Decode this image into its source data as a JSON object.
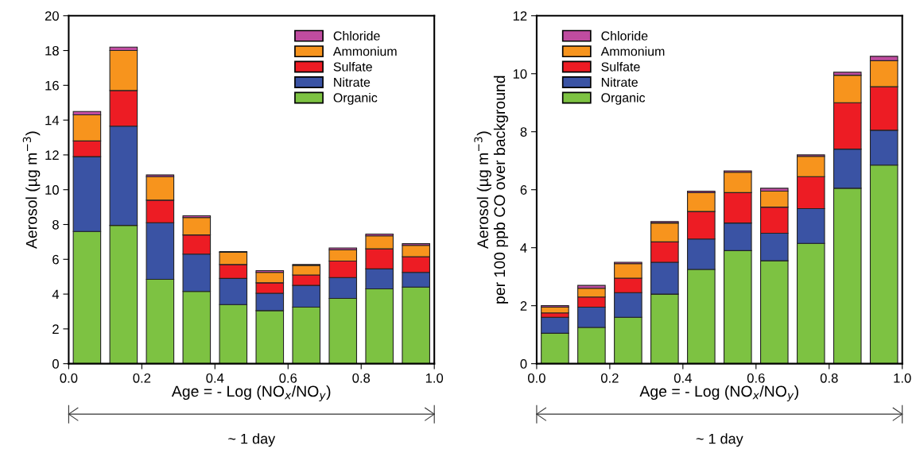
{
  "chart_data": [
    {
      "type": "bar",
      "stacked": true,
      "x": [
        0.05,
        0.15,
        0.25,
        0.35,
        0.45,
        0.55,
        0.65,
        0.75,
        0.85,
        0.95
      ],
      "xlabel": "Age = - Log (NO$_{x}$/NO$_{y}$)",
      "ylabel": "Aerosol (µg m$^{−3}$)",
      "xlim": [
        0,
        1
      ],
      "xticks": [
        {
          "value": 0,
          "label": "0.0"
        },
        {
          "value": 0.2,
          "label": "0.2"
        },
        {
          "value": 0.4,
          "label": "0.4"
        },
        {
          "value": 0.6,
          "label": "0.6"
        },
        {
          "value": 0.8,
          "label": "0.8"
        },
        {
          "value": 1,
          "label": "1.0"
        }
      ],
      "ylim": [
        0,
        20
      ],
      "yticks": [
        0,
        2,
        4,
        6,
        8,
        10,
        12,
        14,
        16,
        18,
        20
      ],
      "grid": false,
      "legend": "top right",
      "annotations": [
        "~ 1 day"
      ],
      "series": [
        {
          "name": "Organic",
          "color": "#7dc242",
          "values": [
            7.6,
            7.95,
            4.85,
            4.15,
            3.4,
            3.05,
            3.25,
            3.75,
            4.3,
            4.4
          ]
        },
        {
          "name": "Nitrate",
          "color": "#3a53a4",
          "values": [
            4.3,
            5.7,
            3.25,
            2.15,
            1.5,
            1.0,
            1.25,
            1.2,
            1.15,
            0.85
          ]
        },
        {
          "name": "Sulfate",
          "color": "#ed1c24",
          "values": [
            0.9,
            2.05,
            1.3,
            1.1,
            0.8,
            0.6,
            0.6,
            0.95,
            1.15,
            0.9
          ]
        },
        {
          "name": "Ammonium",
          "color": "#f7941d",
          "values": [
            1.5,
            2.3,
            1.35,
            1.0,
            0.7,
            0.6,
            0.55,
            0.65,
            0.75,
            0.65
          ]
        },
        {
          "name": "Chloride",
          "color": "#c04ca0",
          "values": [
            0.2,
            0.2,
            0.1,
            0.1,
            0.05,
            0.1,
            0.05,
            0.1,
            0.1,
            0.1
          ]
        }
      ]
    },
    {
      "type": "bar",
      "stacked": true,
      "x": [
        0.05,
        0.15,
        0.25,
        0.35,
        0.45,
        0.55,
        0.65,
        0.75,
        0.85,
        0.95
      ],
      "xlabel": "Age = - Log (NO$_{x}$/NO$_{y}$)",
      "ylabel": "Aerosol (µg m$^{−3}$)\nper 100 ppb CO over background",
      "xlim": [
        0,
        1
      ],
      "xticks": [
        {
          "value": 0,
          "label": "0.0"
        },
        {
          "value": 0.2,
          "label": "0.2"
        },
        {
          "value": 0.4,
          "label": "0.4"
        },
        {
          "value": 0.6,
          "label": "0.6"
        },
        {
          "value": 0.8,
          "label": "0.8"
        },
        {
          "value": 1,
          "label": "1.0"
        }
      ],
      "ylim": [
        0,
        12
      ],
      "yticks": [
        0,
        2,
        4,
        6,
        8,
        10,
        12
      ],
      "grid": false,
      "legend": "top left",
      "annotations": [
        "~ 1 day"
      ],
      "series": [
        {
          "name": "Organic",
          "color": "#7dc242",
          "values": [
            1.05,
            1.25,
            1.6,
            2.4,
            3.25,
            3.9,
            3.55,
            4.15,
            6.05,
            6.85
          ]
        },
        {
          "name": "Nitrate",
          "color": "#3a53a4",
          "values": [
            0.55,
            0.7,
            0.85,
            1.1,
            1.05,
            0.95,
            0.95,
            1.2,
            1.35,
            1.2
          ]
        },
        {
          "name": "Sulfate",
          "color": "#ed1c24",
          "values": [
            0.15,
            0.35,
            0.5,
            0.7,
            0.95,
            1.05,
            0.9,
            1.1,
            1.6,
            1.5
          ]
        },
        {
          "name": "Ammonium",
          "color": "#f7941d",
          "values": [
            0.2,
            0.3,
            0.5,
            0.65,
            0.65,
            0.7,
            0.55,
            0.7,
            0.95,
            0.9
          ]
        },
        {
          "name": "Chloride",
          "color": "#c04ca0",
          "values": [
            0.05,
            0.1,
            0.05,
            0.05,
            0.05,
            0.05,
            0.1,
            0.05,
            0.1,
            0.15
          ]
        }
      ]
    }
  ]
}
